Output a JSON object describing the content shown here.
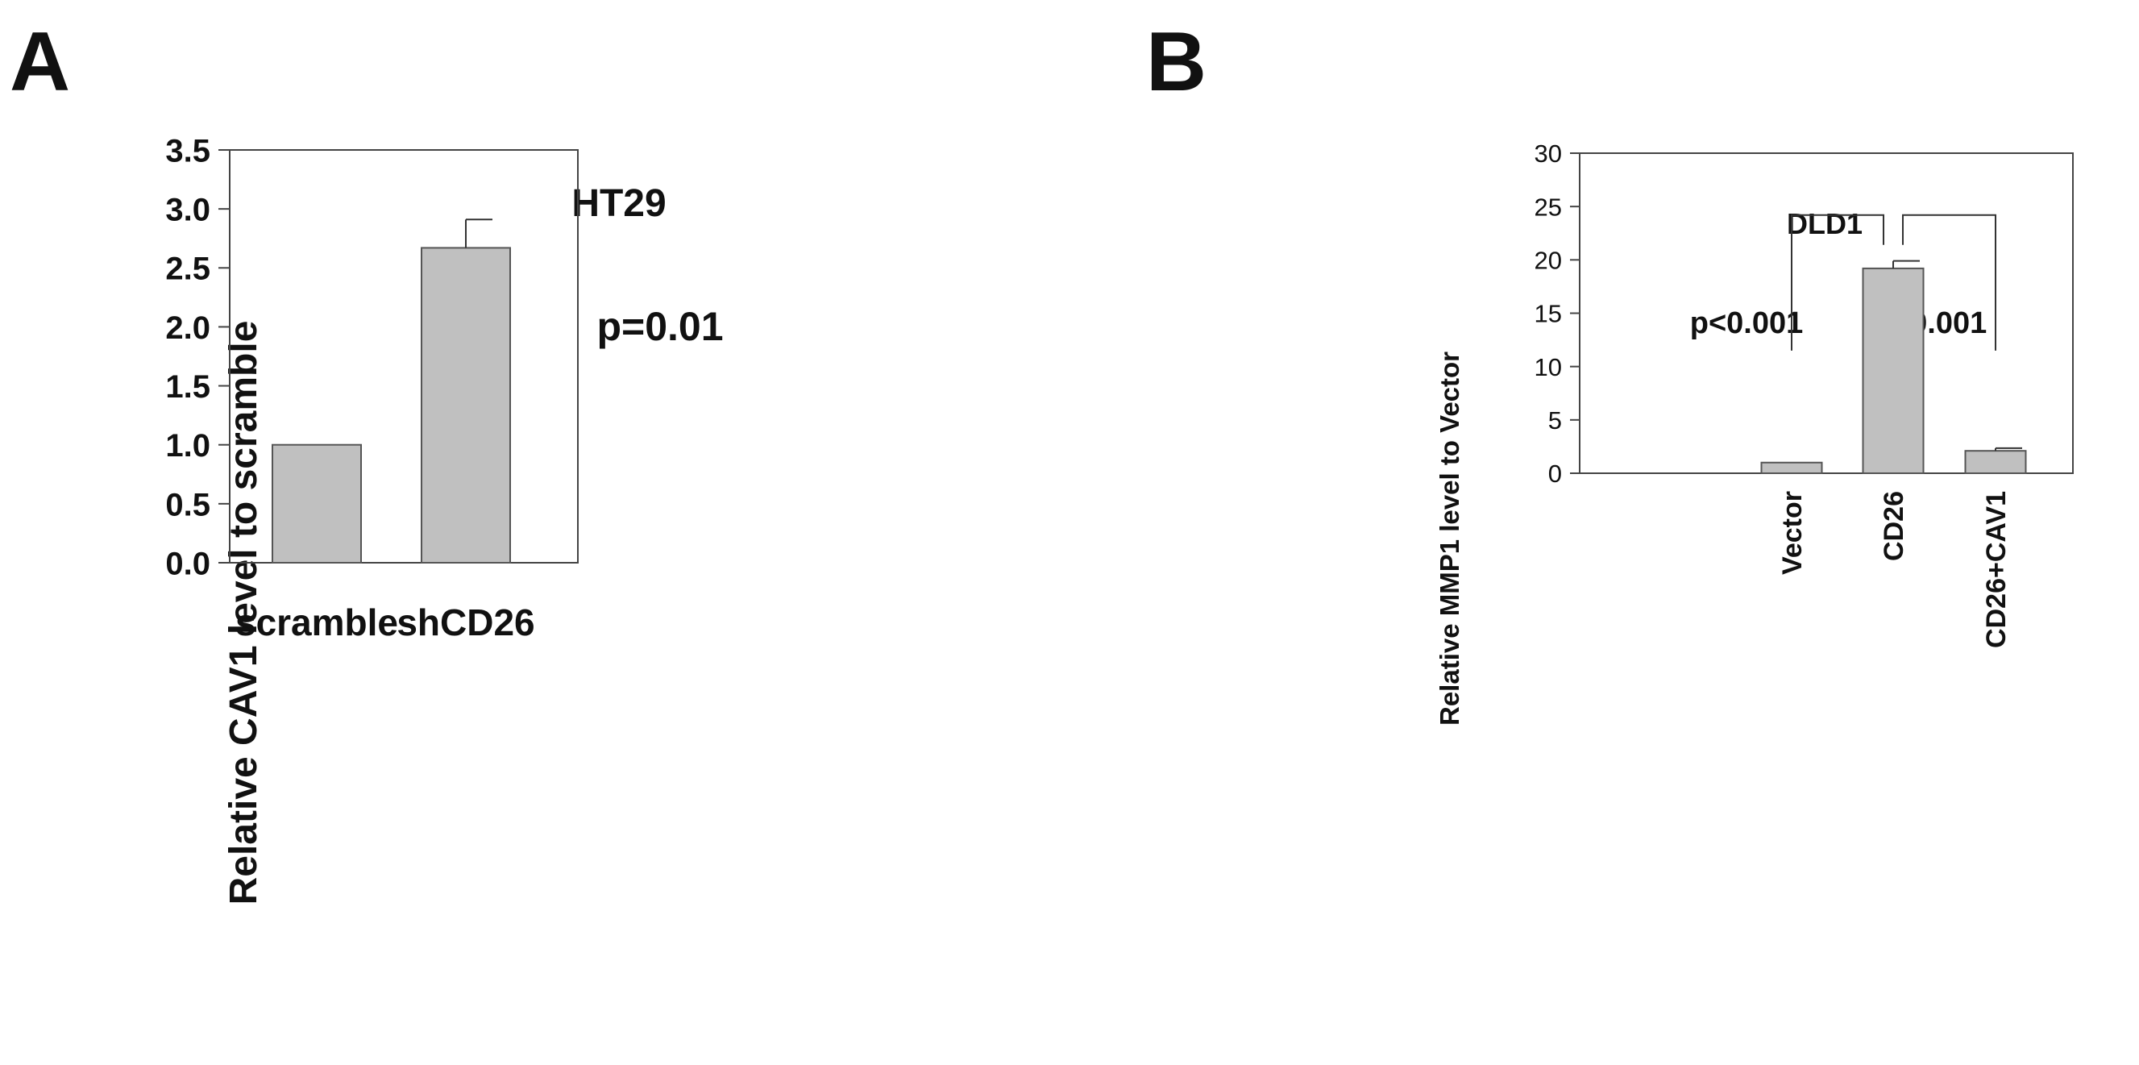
{
  "panels": {
    "a_label": "A",
    "b_label": "B"
  },
  "chart_data": [
    {
      "type": "bar",
      "title": "HT29",
      "ylabel": "Relative CAV1 level to scramble",
      "xlabel": "",
      "categories": [
        "scramble",
        "shCD26"
      ],
      "values": [
        1.0,
        2.67
      ],
      "errors": [
        0,
        0.24
      ],
      "ylim": [
        0,
        3.5
      ],
      "yticks": [
        0.0,
        0.5,
        1.0,
        1.5,
        2.0,
        2.5,
        3.0,
        3.5
      ],
      "ytick_labels": [
        "0.0",
        "0.5",
        "1.0",
        "1.5",
        "2.0",
        "2.5",
        "3.0",
        "3.5"
      ],
      "annotations": [
        "p=0.01"
      ],
      "bar_color": "#c0c0c0",
      "grid": false
    },
    {
      "type": "bar",
      "title": "DLD1",
      "ylabel": "Relative MMP1 level to Vector",
      "xlabel": "",
      "categories": [
        "Vector",
        "CD26",
        "CD26+CAV1"
      ],
      "values": [
        1.0,
        19.2,
        2.1
      ],
      "errors": [
        0,
        0.7,
        0.25
      ],
      "ylim": [
        0,
        30
      ],
      "yticks": [
        0,
        5,
        10,
        15,
        20,
        25,
        30
      ],
      "ytick_labels": [
        "0",
        "5",
        "10",
        "15",
        "20",
        "25",
        "30"
      ],
      "annotations": [
        "p<0.001",
        "p<0.001"
      ],
      "comparisons": [
        {
          "from": "Vector",
          "to": "CD26",
          "bracket_y": 24.2
        },
        {
          "from": "CD26",
          "to": "CD26+CAV1",
          "bracket_y": 24.2
        }
      ],
      "bar_color": "#c0c0c0",
      "grid": false
    }
  ]
}
